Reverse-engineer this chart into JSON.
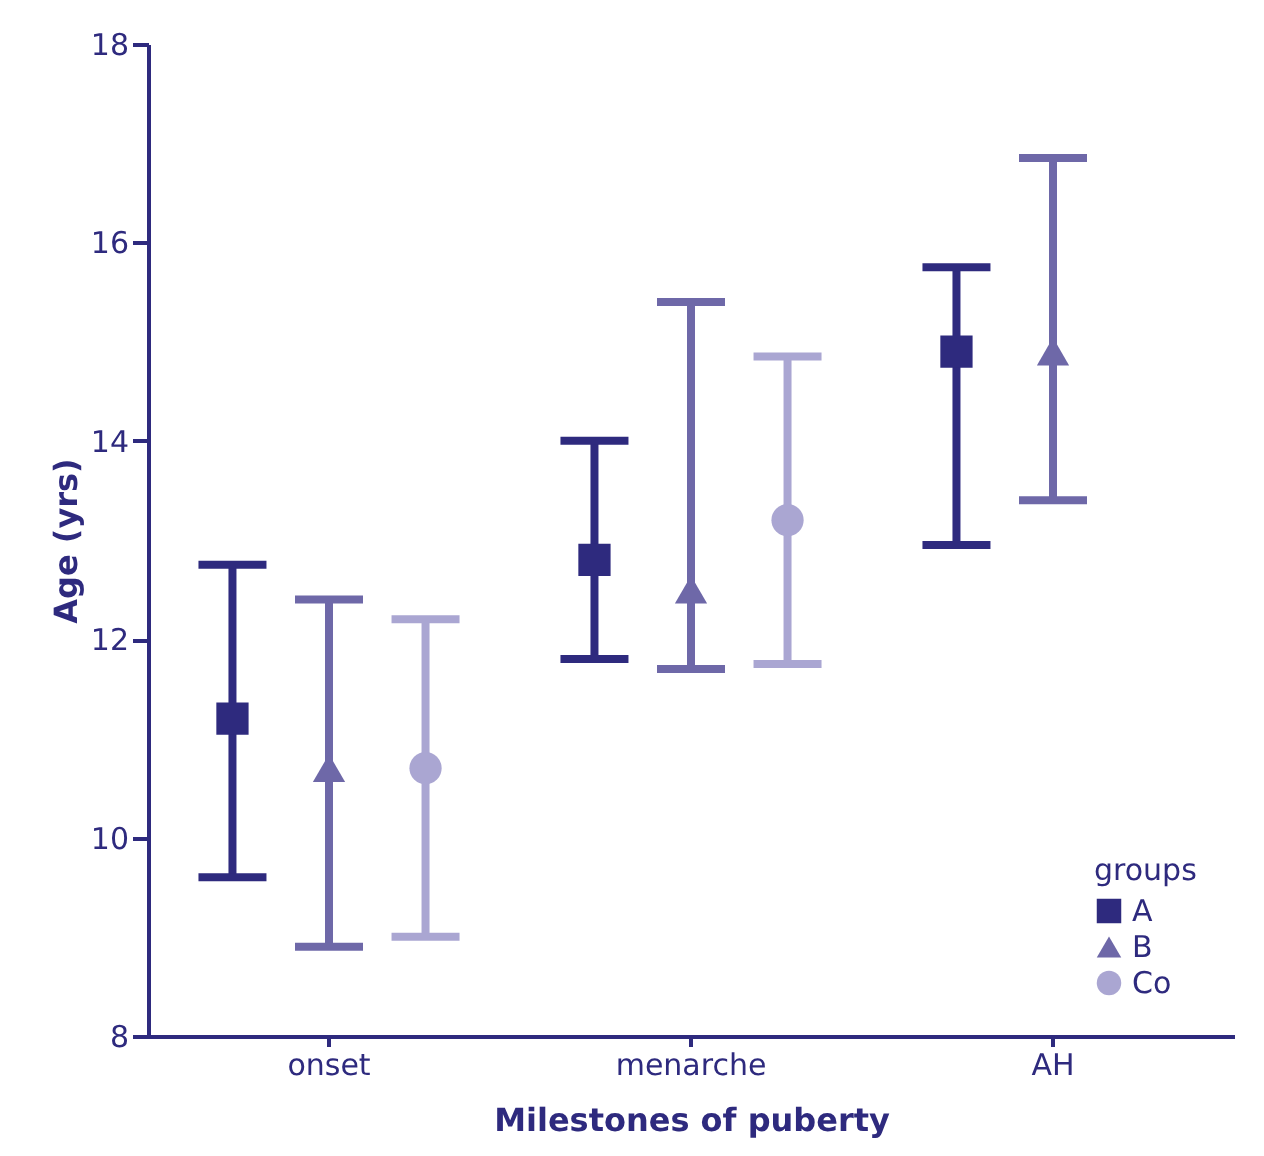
{
  "chart_data": {
    "type": "scatter",
    "xlabel": "Milestones of puberty",
    "ylabel": "Age (yrs)",
    "legend_title": "groups",
    "categories": [
      "onset",
      "menarche",
      "AH"
    ],
    "ylim": [
      8,
      18
    ],
    "yticks": [
      8,
      10,
      12,
      14,
      16,
      18
    ],
    "grid": false,
    "legend": "bottom right",
    "series": [
      {
        "name": "A",
        "color": "#2e2a7e",
        "marker": "square",
        "values": [
          11.2,
          12.8,
          14.9
        ],
        "errors": [
          [
            9.6,
            12.75
          ],
          [
            11.8,
            14.0
          ],
          [
            12.95,
            15.75
          ]
        ]
      },
      {
        "name": "B",
        "color": "#6e68a8",
        "marker": "triangle",
        "values": [
          10.7,
          12.5,
          14.9
        ],
        "errors": [
          [
            8.9,
            12.4
          ],
          [
            11.7,
            15.4
          ],
          [
            13.4,
            16.85
          ]
        ]
      },
      {
        "name": "Co",
        "color": "#aaa6d2",
        "marker": "circle",
        "values": [
          10.7,
          13.2,
          null
        ],
        "errors": [
          [
            9.0,
            12.2
          ],
          [
            11.75,
            14.85
          ],
          null
        ]
      }
    ]
  }
}
